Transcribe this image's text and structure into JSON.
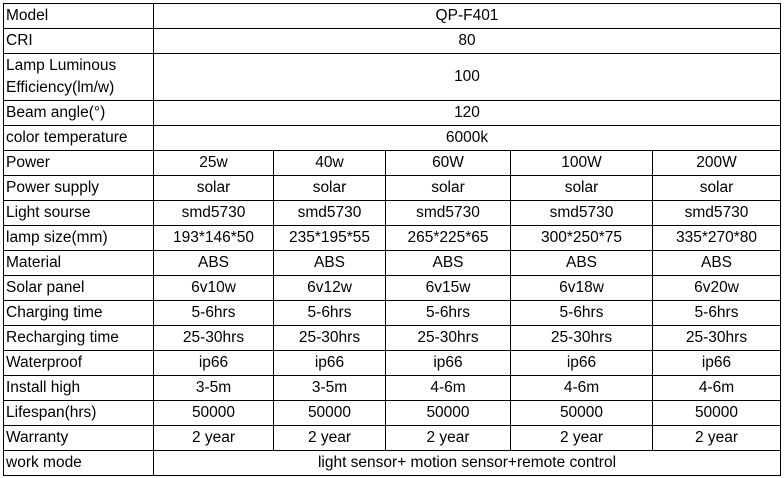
{
  "table": {
    "rows": [
      {
        "label": "Model",
        "values": [
          "QP-F401"
        ]
      },
      {
        "label": "CRI",
        "values": [
          "80"
        ]
      },
      {
        "label": "Lamp Luminous Efficiency(lm/w)",
        "values": [
          "100"
        ]
      },
      {
        "label": "Beam angle(°)",
        "values": [
          "120"
        ]
      },
      {
        "label": "color temperature",
        "values": [
          "6000k"
        ]
      },
      {
        "label": "Power",
        "values": [
          "25w",
          "40w",
          "60W",
          "100W",
          "200W"
        ]
      },
      {
        "label": "Power supply",
        "values": [
          "solar",
          "solar",
          "solar",
          "solar",
          "solar"
        ]
      },
      {
        "label": "Light sourse",
        "values": [
          "smd5730",
          "smd5730",
          "smd5730",
          "smd5730",
          "smd5730"
        ]
      },
      {
        "label": "lamp size(mm)",
        "values": [
          "193*146*50",
          "235*195*55",
          "265*225*65",
          "300*250*75",
          "335*270*80"
        ]
      },
      {
        "label": "Material",
        "values": [
          "ABS",
          "ABS",
          "ABS",
          "ABS",
          "ABS"
        ]
      },
      {
        "label": "Solar panel",
        "values": [
          "6v10w",
          "6v12w",
          "6v15w",
          "6v18w",
          "6v20w"
        ]
      },
      {
        "label": "Charging time",
        "values": [
          "5-6hrs",
          "5-6hrs",
          "5-6hrs",
          "5-6hrs",
          "5-6hrs"
        ]
      },
      {
        "label": "Recharging time",
        "values": [
          "25-30hrs",
          "25-30hrs",
          "25-30hrs",
          "25-30hrs",
          "25-30hrs"
        ]
      },
      {
        "label": "Waterproof",
        "values": [
          "ip66",
          "ip66",
          "ip66",
          "ip66",
          "ip66"
        ]
      },
      {
        "label": "Install high",
        "values": [
          "3-5m",
          "3-5m",
          "4-6m",
          "4-6m",
          "4-6m"
        ]
      },
      {
        "label": "Lifespan(hrs)",
        "values": [
          "50000",
          "50000",
          "50000",
          "50000",
          "50000"
        ]
      },
      {
        "label": "Warranty",
        "values": [
          "2 year",
          "2 year",
          "2 year",
          "2 year",
          "2 year"
        ]
      },
      {
        "label": "work mode",
        "values": [
          "light sensor+ motion sensor+remote control"
        ]
      }
    ]
  }
}
